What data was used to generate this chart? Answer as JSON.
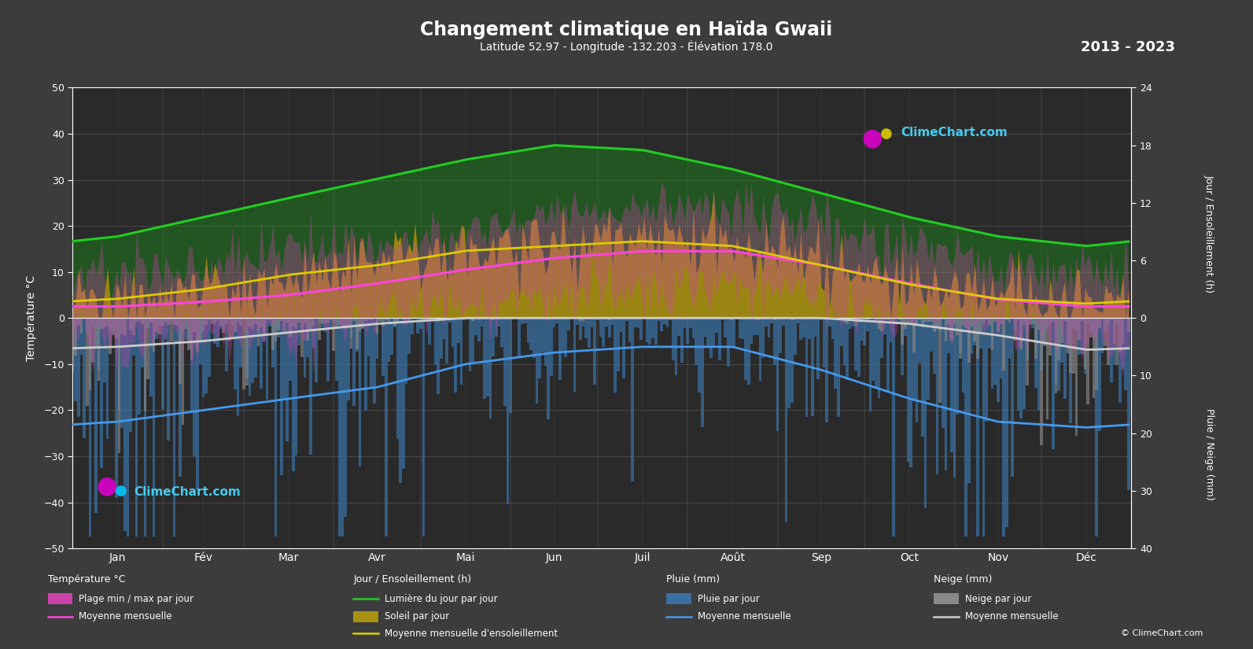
{
  "title": "Changement climatique en Haïda Gwaii",
  "subtitle": "Latitude 52.97 - Longitude -132.203 - Élévation 178.0",
  "year_range": "2013 - 2023",
  "bg_color": "#3c3c3c",
  "plot_bg": "#2a2a2a",
  "months": [
    "Jan",
    "Fév",
    "Mar",
    "Avr",
    "Mai",
    "Jun",
    "Juil",
    "Août",
    "Sep",
    "Oct",
    "Nov",
    "Déc"
  ],
  "days_per_month": [
    31,
    28,
    31,
    30,
    31,
    30,
    31,
    31,
    30,
    31,
    30,
    31
  ],
  "temp_mean": [
    2.5,
    3.5,
    5.0,
    7.5,
    10.5,
    13.0,
    14.5,
    14.5,
    11.5,
    7.5,
    4.0,
    2.5
  ],
  "temp_max_mean": [
    6.5,
    7.5,
    9.5,
    12.0,
    15.5,
    18.0,
    20.0,
    20.0,
    17.0,
    11.5,
    7.5,
    6.0
  ],
  "temp_min_mean": [
    -1.5,
    -0.5,
    1.0,
    3.5,
    6.5,
    9.5,
    11.0,
    11.0,
    8.5,
    4.5,
    1.5,
    -1.0
  ],
  "daylight_mean": [
    8.5,
    10.5,
    12.5,
    14.5,
    16.5,
    18.0,
    17.5,
    15.5,
    13.0,
    10.5,
    8.5,
    7.5
  ],
  "sunshine_mean": [
    2.0,
    3.0,
    4.5,
    5.5,
    7.0,
    7.5,
    8.0,
    7.5,
    5.5,
    3.5,
    2.0,
    1.5
  ],
  "rain_mean": [
    18.0,
    16.0,
    14.0,
    12.0,
    8.0,
    6.0,
    5.0,
    5.0,
    9.0,
    14.0,
    18.0,
    19.0
  ],
  "snow_mean": [
    5.0,
    4.0,
    2.5,
    1.0,
    0.0,
    0.0,
    0.0,
    0.0,
    0.0,
    1.0,
    3.0,
    5.5
  ],
  "temp_ylim": [
    -50,
    50
  ],
  "color_temp_fill": "#cc44aa",
  "color_temp_line": "#ff44dd",
  "color_daylight_fill": "#1a8a1a",
  "color_daylight_line": "#22cc22",
  "color_sunshine_fill": "#a89010",
  "color_sunshine_line": "#ddcc00",
  "color_rain_bar": "#3a6fa0",
  "color_rain_line": "#4499ee",
  "color_snow_bar": "#888888",
  "color_snow_line": "#cccccc",
  "color_watermark": "#44ccee",
  "legend_temp_title": "Température °C",
  "legend_sun_title": "Jour / Ensoleillement (h)",
  "legend_rain_title": "Pluie (mm)",
  "legend_snow_title": "Neige (mm)",
  "legend_temp_range": "Plage min / max par jour",
  "legend_temp_mean": "Moyenne mensuelle",
  "legend_daylight": "Lumière du jour par jour",
  "legend_sun_day": "Soleil par jour",
  "legend_sun_mean": "Moyenne mensuelle d'ensoleillement",
  "legend_rain_day": "Pluie par jour",
  "legend_rain_mean": "Moyenne mensuelle",
  "legend_snow_day": "Neige par jour",
  "legend_snow_mean": "Moyenne mensuelle",
  "ylabel_left": "Température °C",
  "ylabel_right_top": "Jour / Ensoleillement (h)",
  "ylabel_right_bot": "Pluie / Neige (mm)"
}
